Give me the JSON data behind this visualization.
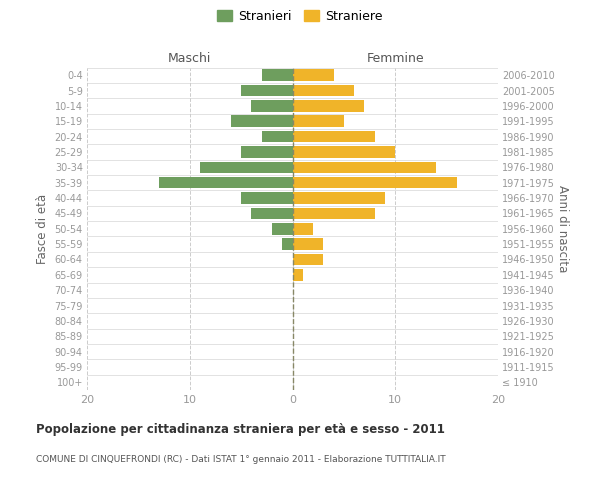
{
  "age_groups": [
    "100+",
    "95-99",
    "90-94",
    "85-89",
    "80-84",
    "75-79",
    "70-74",
    "65-69",
    "60-64",
    "55-59",
    "50-54",
    "45-49",
    "40-44",
    "35-39",
    "30-34",
    "25-29",
    "20-24",
    "15-19",
    "10-14",
    "5-9",
    "0-4"
  ],
  "birth_years": [
    "≤ 1910",
    "1911-1915",
    "1916-1920",
    "1921-1925",
    "1926-1930",
    "1931-1935",
    "1936-1940",
    "1941-1945",
    "1946-1950",
    "1951-1955",
    "1956-1960",
    "1961-1965",
    "1966-1970",
    "1971-1975",
    "1976-1980",
    "1981-1985",
    "1986-1990",
    "1991-1995",
    "1996-2000",
    "2001-2005",
    "2006-2010"
  ],
  "maschi": [
    0,
    0,
    0,
    0,
    0,
    0,
    0,
    0,
    0,
    1,
    2,
    4,
    5,
    13,
    9,
    5,
    3,
    6,
    4,
    5,
    3
  ],
  "femmine": [
    0,
    0,
    0,
    0,
    0,
    0,
    0,
    1,
    3,
    3,
    2,
    8,
    9,
    16,
    14,
    10,
    8,
    5,
    7,
    6,
    4
  ],
  "maschi_color": "#6e9e5e",
  "femmine_color": "#f0b429",
  "title": "Popolazione per cittadinanza straniera per età e sesso - 2011",
  "subtitle": "COMUNE DI CINQUEFRONDI (RC) - Dati ISTAT 1° gennaio 2011 - Elaborazione TUTTITALIA.IT",
  "ylabel_left": "Fasce di età",
  "ylabel_right": "Anni di nascita",
  "xlabel_left": "Maschi",
  "xlabel_right": "Femmine",
  "legend_maschi": "Stranieri",
  "legend_femmine": "Straniere",
  "xlim": 20,
  "background_color": "#ffffff",
  "grid_color": "#cccccc",
  "axis_label_color": "#666666",
  "tick_color": "#999999"
}
